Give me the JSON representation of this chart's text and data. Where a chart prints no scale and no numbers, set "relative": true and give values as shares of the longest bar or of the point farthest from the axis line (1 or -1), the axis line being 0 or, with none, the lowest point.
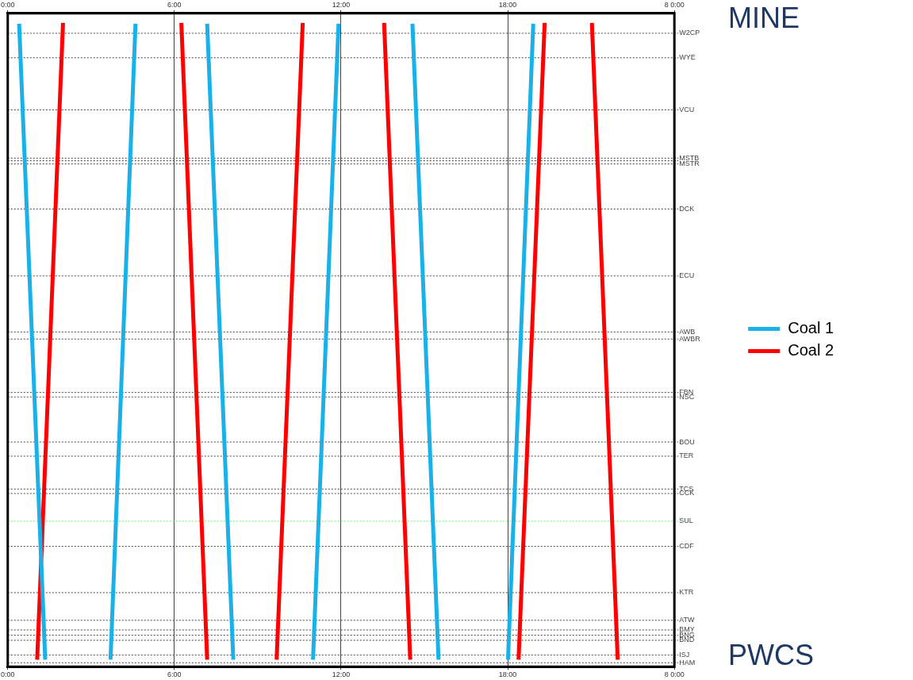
{
  "chart_data": {
    "type": "line",
    "relative": true,
    "marker": "none",
    "line_style": "solid",
    "grid": "x",
    "legend": "right",
    "annotations": [
      "MINE",
      "PWCS"
    ],
    "xlim": [
      0,
      24
    ],
    "xticks": [
      {
        "value": 0,
        "label": "0:00"
      },
      {
        "value": 6,
        "label": "6:00"
      },
      {
        "value": 12,
        "label": "12:00"
      },
      {
        "value": 18,
        "label": "18:00"
      },
      {
        "value": 24,
        "label": "8 0:00"
      }
    ],
    "x2lim": [
      0,
      24
    ],
    "x2ticks": [
      {
        "value": 0,
        "label": "0:00"
      },
      {
        "value": 6,
        "label": "6:00"
      },
      {
        "value": 12,
        "label": "12:00"
      },
      {
        "value": 18,
        "label": "18:00"
      },
      {
        "value": 24,
        "label": "8 0:00"
      }
    ],
    "ref_lines": [
      {
        "axis": "y",
        "value": 0.984,
        "label": "W2CP"
      },
      {
        "axis": "y",
        "value": 0.946,
        "label": "WYE"
      },
      {
        "axis": "y",
        "value": 0.865,
        "label": "VCU"
      },
      {
        "axis": "y",
        "value": 0.79,
        "label": "MSTB"
      },
      {
        "axis": "y",
        "value": 0.786
      },
      {
        "axis": "y",
        "value": 0.781,
        "label": "MSTR"
      },
      {
        "axis": "y",
        "value": 0.711,
        "label": "DCK"
      },
      {
        "axis": "y",
        "value": 0.607,
        "label": "ECU"
      },
      {
        "axis": "y",
        "value": 0.52,
        "label": "AWB"
      },
      {
        "axis": "y",
        "value": 0.509,
        "label": "AWBR"
      },
      {
        "axis": "y",
        "value": 0.426,
        "label": "FBN"
      },
      {
        "axis": "y",
        "value": 0.419,
        "label": "NSC"
      },
      {
        "axis": "y",
        "value": 0.349,
        "label": "BOU"
      },
      {
        "axis": "y",
        "value": 0.327,
        "label": "TER"
      },
      {
        "axis": "y",
        "value": 0.276,
        "label": "TCS"
      },
      {
        "axis": "y",
        "value": 0.269,
        "label": "CCK"
      },
      {
        "axis": "y",
        "value": 0.226,
        "label": "SUL",
        "color": "#66ee66"
      },
      {
        "axis": "y",
        "value": 0.187,
        "label": "CDF"
      },
      {
        "axis": "y",
        "value": 0.115,
        "label": "KTR"
      },
      {
        "axis": "y",
        "value": 0.072,
        "label": "ATW"
      },
      {
        "axis": "y",
        "value": 0.057,
        "label": "BMY"
      },
      {
        "axis": "y",
        "value": 0.049,
        "label": "BNG"
      },
      {
        "axis": "y",
        "value": 0.041,
        "label": "BND"
      },
      {
        "axis": "y",
        "value": 0.018,
        "label": "ISJ"
      },
      {
        "axis": "y",
        "value": 0.006,
        "label": "HAM"
      }
    ],
    "series": [
      {
        "name": "Coal 1",
        "color": "#1ab0e8",
        "x": [
          0.41,
          1.35
        ],
        "values": [
          0.999,
          0.011
        ]
      },
      {
        "color": "#1ab0e8",
        "x": [
          3.7,
          4.6
        ],
        "values": [
          0.011,
          0.999
        ]
      },
      {
        "color": "#1ab0e8",
        "x": [
          7.18,
          8.12
        ],
        "values": [
          0.999,
          0.011
        ]
      },
      {
        "color": "#1ab0e8",
        "x": [
          10.99,
          11.91
        ],
        "values": [
          0.011,
          0.999
        ]
      },
      {
        "color": "#1ab0e8",
        "x": [
          14.57,
          15.51
        ],
        "values": [
          0.999,
          0.011
        ]
      },
      {
        "color": "#1ab0e8",
        "x": [
          18.01,
          18.92
        ],
        "values": [
          0.011,
          0.999
        ]
      },
      {
        "name": "Coal 2",
        "color": "#ff0000",
        "x": [
          1.99,
          1.06
        ],
        "values": [
          1,
          0.011
        ]
      },
      {
        "color": "#ff0000",
        "x": [
          6.25,
          7.18
        ],
        "values": [
          1,
          0.011
        ]
      },
      {
        "color": "#ff0000",
        "x": [
          10.62,
          9.68
        ],
        "values": [
          1,
          0.011
        ]
      },
      {
        "color": "#ff0000",
        "x": [
          13.55,
          14.49
        ],
        "values": [
          1,
          0.011
        ]
      },
      {
        "color": "#ff0000",
        "x": [
          19.33,
          18.39
        ],
        "values": [
          1,
          0.011
        ]
      },
      {
        "color": "#ff0000",
        "x": [
          21.03,
          21.96
        ],
        "values": [
          1,
          0.011
        ]
      }
    ]
  }
}
